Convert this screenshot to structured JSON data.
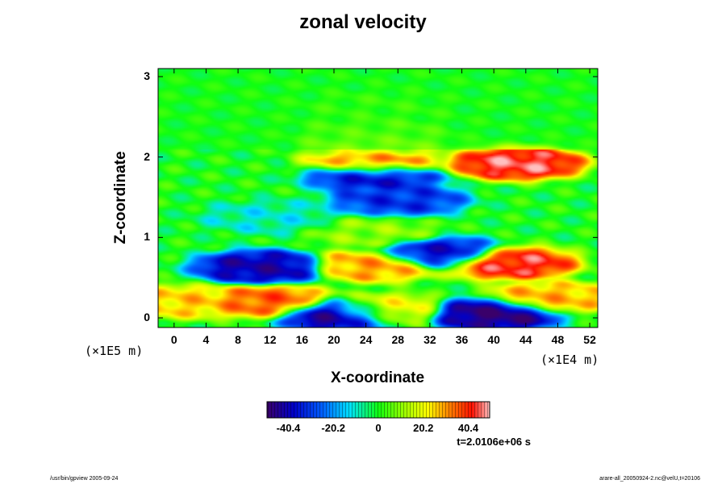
{
  "chart_data": {
    "type": "heatmap",
    "title": "zonal velocity",
    "xlabel": "X-coordinate",
    "ylabel": "Z-coordinate",
    "x_unit": "(×1E4 m)",
    "y_unit": "(×1E5 m)",
    "xlim": [
      -2,
      53
    ],
    "ylim": [
      -0.12,
      3.1
    ],
    "x_ticks": [
      "0",
      "4",
      "8",
      "12",
      "16",
      "20",
      "24",
      "28",
      "32",
      "36",
      "40",
      "44",
      "48",
      "52"
    ],
    "y_ticks": [
      "0",
      "1",
      "2",
      "3"
    ],
    "colorbar": {
      "range": [
        -50,
        50
      ],
      "ticks": [
        "-40.4",
        "-20.2",
        "0",
        "20.2",
        "40.4"
      ],
      "tick_values": [
        -40.4,
        -20.2,
        0,
        20.2,
        40.4
      ]
    },
    "features": [
      {
        "x": 25,
        "z": 2.6,
        "value": 4
      },
      {
        "x": 25,
        "z": 2.3,
        "value": 8
      },
      {
        "x": 25,
        "z": 2.15,
        "value": 14
      },
      {
        "x": 25,
        "z": 1.93,
        "value": 34
      },
      {
        "x": 43,
        "z": 1.92,
        "value": 46
      },
      {
        "x": 25,
        "z": 1.77,
        "value": -38
      },
      {
        "x": 28,
        "z": 1.47,
        "value": -32
      },
      {
        "x": 12,
        "z": 1.25,
        "value": -10
      },
      {
        "x": 25,
        "z": 1.05,
        "value": 10
      },
      {
        "x": 11,
        "z": 0.63,
        "value": -42
      },
      {
        "x": 33,
        "z": 0.8,
        "value": -38
      },
      {
        "x": 42,
        "z": 0.68,
        "value": 44
      },
      {
        "x": 25,
        "z": 0.65,
        "value": 30
      },
      {
        "x": 12,
        "z": 0.2,
        "value": 36
      },
      {
        "x": 21,
        "z": 0.05,
        "value": -48
      },
      {
        "x": 26,
        "z": 0.1,
        "value": 24
      },
      {
        "x": 40,
        "z": 0.05,
        "value": -48
      },
      {
        "x": 47,
        "z": 0.25,
        "value": 28
      },
      {
        "x": 1,
        "z": 0.2,
        "value": 26
      }
    ]
  },
  "annotations": {
    "timestamp": "t=2.0106e+06 s",
    "footer_left": "/usr/bin/gpview 2005-09-24",
    "footer_right": "arare-all_20050924-2.nc@velU,t=20106"
  }
}
